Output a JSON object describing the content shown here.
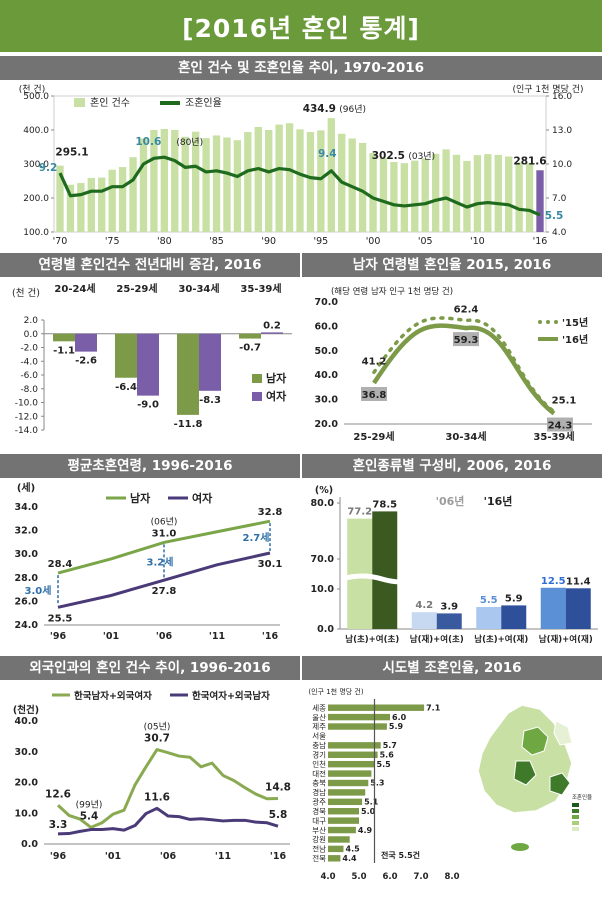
{
  "page": {
    "title": "[2016년 혼인 통계]",
    "sections": {
      "trend": "혼인 건수 및 조혼인율 추이, 1970-2016",
      "age_change": "연령별 혼인건수 전년대비 증감, 2016",
      "male_rate": "남자 연령별 혼인율 2015, 2016",
      "first_age": "평균초혼연령, 1996-2016",
      "type_comp": "혼인종류별 구성비, 2006, 2016",
      "foreign": "외국인과의 혼인 건수 추이, 1996-2016",
      "regional": "시도별 조혼인율, 2016"
    }
  },
  "colors": {
    "banner": "#6b9a3a",
    "section_bar": "#737373",
    "light_green": "#c8e0a4",
    "dark_green": "#1e6b1e",
    "olive": "#7c9a48",
    "purple": "#7b5ea8",
    "dark_purple": "#4a3a78",
    "blue": "#5b8fd6",
    "dark_blue": "#2e4f9a"
  },
  "chart_data": [
    {
      "id": "trend",
      "type": "bar+line",
      "left_unit": "(천 건)",
      "right_unit": "(인구 1천 명당 건)",
      "legend": [
        "혼인 건수",
        "조혼인율"
      ],
      "x": [
        1970,
        1971,
        1972,
        1973,
        1974,
        1975,
        1976,
        1977,
        1978,
        1979,
        1980,
        1981,
        1982,
        1983,
        1984,
        1985,
        1986,
        1987,
        1988,
        1989,
        1990,
        1991,
        1992,
        1993,
        1994,
        1995,
        1996,
        1997,
        1998,
        1999,
        2000,
        2001,
        2002,
        2003,
        2004,
        2005,
        2006,
        2007,
        2008,
        2009,
        2010,
        2011,
        2012,
        2013,
        2014,
        2015,
        2016
      ],
      "xticks": [
        {
          "x": 1970,
          "label": "'70"
        },
        {
          "x": 1975,
          "label": "'75"
        },
        {
          "x": 1980,
          "label": "'80"
        },
        {
          "x": 1985,
          "label": "'85"
        },
        {
          "x": 1990,
          "label": "'90"
        },
        {
          "x": 1995,
          "label": "'95"
        },
        {
          "x": 2000,
          "label": "'00"
        },
        {
          "x": 2005,
          "label": "'05"
        },
        {
          "x": 2010,
          "label": "'10"
        },
        {
          "x": 2016,
          "label": "'16"
        }
      ],
      "bars": [
        295.1,
        239,
        244,
        259,
        260,
        283,
        291,
        320,
        375,
        400,
        403,
        400,
        380,
        395,
        376,
        384,
        378,
        370,
        394,
        409,
        400,
        416,
        420,
        402,
        394,
        399,
        434.9,
        389,
        375,
        362,
        332,
        318,
        306,
        302.5,
        310,
        316,
        330,
        343,
        327,
        309,
        326,
        329,
        327,
        322,
        305,
        303,
        281.6
      ],
      "line": [
        9.2,
        7.2,
        7.3,
        7.6,
        7.6,
        8.0,
        8.0,
        8.6,
        10.0,
        10.5,
        10.6,
        10.3,
        9.7,
        9.8,
        9.3,
        9.4,
        9.2,
        8.9,
        9.4,
        9.6,
        9.3,
        9.6,
        9.5,
        9.1,
        8.8,
        8.7,
        9.4,
        8.4,
        8.0,
        7.6,
        7.0,
        6.7,
        6.4,
        6.3,
        6.4,
        6.5,
        6.8,
        7.0,
        6.6,
        6.2,
        6.5,
        6.6,
        6.5,
        6.4,
        6.0,
        5.9,
        5.5
      ],
      "left_ticks": [
        "100.0",
        "200.0",
        "300.0",
        "400.0",
        "500.0"
      ],
      "right_ticks": [
        "4.0",
        "7.0",
        "10.0",
        "13.0",
        "16.0"
      ],
      "ylim_left": [
        100,
        500
      ],
      "ylim_right": [
        4,
        16
      ],
      "labels": {
        "v1970": "295.1",
        "r1970": "9.2",
        "r1980": "10.6",
        "r1980_note": "(80년)",
        "v1996": "434.9",
        "v1996_note": "(96년)",
        "r1996": "9.4",
        "v2003": "302.5",
        "v2003_note": "(03년)",
        "v2016": "281.6",
        "r2016": "5.5"
      }
    },
    {
      "id": "age_change",
      "type": "bar",
      "unit": "(천 건)",
      "categories": [
        "20-24세",
        "25-29세",
        "30-34세",
        "35-39세"
      ],
      "series": [
        {
          "name": "남자",
          "values": [
            -1.1,
            -6.4,
            -11.8,
            -0.7
          ]
        },
        {
          "name": "여자",
          "values": [
            -2.6,
            -9.0,
            -8.3,
            0.2
          ]
        }
      ],
      "value_labels": {
        "남자": [
          "-1.1",
          "-6.4",
          "-11.8",
          "-0.7"
        ],
        "여자": [
          "-2.6",
          "-9.0",
          "-8.3",
          "0.2"
        ]
      },
      "ylim": [
        -14,
        2
      ],
      "yticks": [
        "2.0",
        "0.0",
        "-2.0",
        "-4.0",
        "-6.0",
        "-8.0",
        "-10.0",
        "-12.0",
        "-14.0"
      ]
    },
    {
      "id": "male_rate",
      "type": "line",
      "unit": "(해당 연령 남자 인구 1천 명당 건)",
      "categories": [
        "25-29세",
        "30-34세",
        "35-39세"
      ],
      "series": [
        {
          "name": "'15년",
          "values": [
            41.2,
            62.4,
            25.1
          ]
        },
        {
          "name": "'16년",
          "values": [
            36.8,
            59.3,
            24.3
          ]
        }
      ],
      "ylim": [
        20,
        70
      ],
      "yticks": [
        "20.0",
        "30.0",
        "40.0",
        "50.0",
        "60.0",
        "70.0"
      ]
    },
    {
      "id": "first_age",
      "type": "line",
      "unit": "(세)",
      "x": [
        1996,
        2001,
        2006,
        2011,
        2016
      ],
      "xticks": [
        "'96",
        "'01",
        "'06",
        "'11",
        "'16"
      ],
      "series": [
        {
          "name": "남자",
          "values": [
            28.4,
            29.6,
            31.0,
            31.9,
            32.8
          ]
        },
        {
          "name": "여자",
          "values": [
            25.5,
            26.5,
            27.8,
            29.1,
            30.1
          ]
        }
      ],
      "ylim": [
        24,
        34
      ],
      "yticks": [
        "24.0",
        "26.0",
        "28.0",
        "30.0",
        "32.0",
        "34.0"
      ],
      "annotations": {
        "gap1996": "3.0세",
        "gap2006": "3.2세",
        "gap2016": "2.7세",
        "note2006": "(06년)"
      }
    },
    {
      "id": "type_comp",
      "type": "bar",
      "unit": "(%)",
      "legend_2006": "'06년",
      "legend_2016": "'16년",
      "categories": [
        "남(초)+여(초)",
        "남(재)+여(초)",
        "남(초)+여(재)",
        "남(재)+여(재)"
      ],
      "series": [
        {
          "name": "'06년",
          "values": [
            77.2,
            4.2,
            5.5,
            12.5
          ]
        },
        {
          "name": "'16년",
          "values": [
            78.5,
            3.9,
            5.9,
            11.4
          ]
        }
      ],
      "yticks": [
        "0.0",
        "10.0",
        "70.0",
        "80.0"
      ]
    },
    {
      "id": "foreign",
      "type": "line",
      "unit": "(천건)",
      "x": [
        1996,
        1997,
        1998,
        1999,
        2000,
        2001,
        2002,
        2003,
        2004,
        2005,
        2006,
        2007,
        2008,
        2009,
        2010,
        2011,
        2012,
        2013,
        2014,
        2015,
        2016
      ],
      "xticks": [
        {
          "x": 1996,
          "label": "'96"
        },
        {
          "x": 2001,
          "label": "'01"
        },
        {
          "x": 2006,
          "label": "'06"
        },
        {
          "x": 2011,
          "label": "'11"
        },
        {
          "x": 2016,
          "label": "'16"
        }
      ],
      "series": [
        {
          "name": "한국남자+외국여자",
          "values": [
            12.6,
            9.3,
            8.1,
            5.4,
            6.9,
            9.7,
            11.0,
            19.2,
            25.1,
            30.7,
            29.7,
            28.6,
            28.2,
            25.1,
            26.3,
            22.3,
            20.6,
            18.3,
            16.2,
            14.7,
            14.8
          ]
        },
        {
          "name": "한국여자+외국남자",
          "values": [
            3.3,
            3.4,
            4.1,
            4.7,
            4.7,
            5.0,
            4.5,
            6.0,
            9.9,
            11.6,
            9.1,
            8.9,
            8.0,
            8.2,
            7.9,
            7.5,
            7.7,
            7.7,
            7.1,
            6.9,
            5.8
          ]
        }
      ],
      "ylim": [
        0,
        40
      ],
      "yticks": [
        "0.0",
        "10.0",
        "20.0",
        "30.0",
        "40.0"
      ],
      "labels": {
        "m1996": "12.6",
        "m1999": "5.4",
        "n1999": "(99년)",
        "m2005": "30.7",
        "n2005": "(05년)",
        "f2005": "11.6",
        "f1996": "3.3",
        "m2016": "14.8",
        "f2016": "5.8"
      }
    },
    {
      "id": "regional",
      "type": "bar",
      "unit": "(인구 1천 명당 건)",
      "categories": [
        "세종",
        "울산",
        "제주",
        "서울",
        "충남",
        "경기",
        "인천",
        "대전",
        "충북",
        "경남",
        "광주",
        "경북",
        "대구",
        "부산",
        "강원",
        "전남",
        "전북"
      ],
      "values": [
        7.1,
        6.0,
        5.9,
        null,
        5.7,
        5.6,
        5.5,
        null,
        5.3,
        null,
        5.1,
        5.0,
        null,
        4.9,
        null,
        4.5,
        4.4
      ],
      "value_labels": [
        "7.1",
        "6.0",
        "5.9",
        "",
        "5.7",
        "5.6",
        "5.5",
        "",
        "5.3",
        "",
        "5.1",
        "5.0",
        "",
        "4.9",
        "",
        "4.5",
        "4.4"
      ],
      "xticks": [
        "4.0",
        "5.0",
        "6.0",
        "7.0",
        "8.0"
      ],
      "national_label": "전국 5.5건",
      "national_value": 5.5,
      "map_legend_title": "조혼인율"
    }
  ]
}
